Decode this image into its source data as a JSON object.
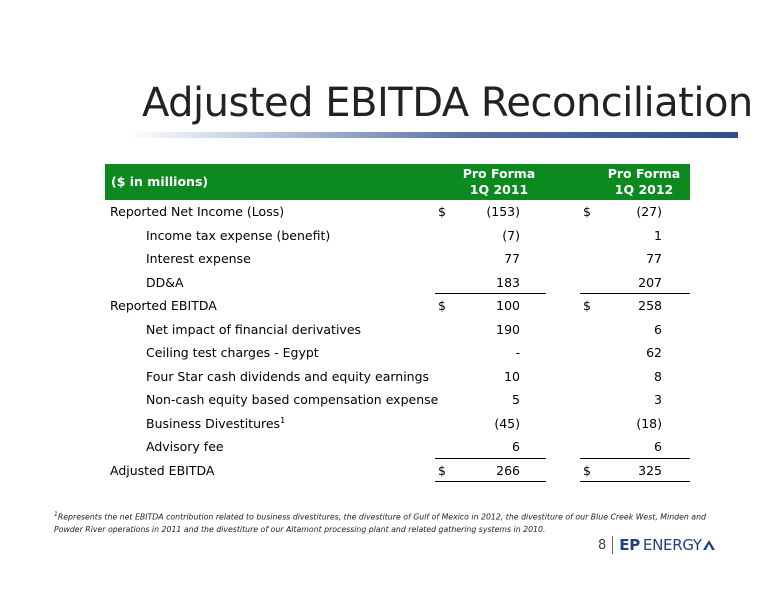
{
  "title": "Adjusted EBITDA Reconciliation",
  "table": {
    "header_label": "($ in millions)",
    "col1_line1": "Pro Forma",
    "col1_line2": "1Q 2011",
    "col2_line1": "Pro Forma",
    "col2_line2": "1Q 2012",
    "rows": [
      {
        "label": "Reported Net Income (Loss)",
        "cur1": "$",
        "v1": "(153)",
        "cur2": "$",
        "v2": "(27)"
      },
      {
        "label": "Income tax expense (benefit)",
        "v1": "(7)",
        "v2": "1"
      },
      {
        "label": "Interest expense",
        "v1": "77",
        "v2": "77"
      },
      {
        "label": "DD&A",
        "v1": "183",
        "v2": "207"
      },
      {
        "label": "Reported EBITDA",
        "cur1": "$",
        "v1": "100",
        "cur2": "$",
        "v2": "258"
      },
      {
        "label": "Net impact of financial derivatives",
        "v1": "190",
        "v2": "6"
      },
      {
        "label": "Ceiling test charges - Egypt",
        "v1": "-",
        "v2": "62"
      },
      {
        "label": "Four Star cash dividends and equity earnings",
        "v1": "10",
        "v2": "8"
      },
      {
        "label": "Non-cash equity based compensation expense",
        "v1": "5",
        "v2": "3"
      },
      {
        "label": "Business Divestitures",
        "label_sup": "1",
        "v1": "(45)",
        "v2": "(18)"
      },
      {
        "label": "Advisory fee",
        "v1": "6",
        "v2": "6"
      },
      {
        "label": "Adjusted EBITDA",
        "cur1": "$",
        "v1": "266",
        "cur2": "$",
        "v2": "325"
      }
    ]
  },
  "footnote": {
    "marker": "1",
    "text": "Represents the net EBITDA contribution related to business divestitures, the divestiture of Gulf of Mexico in 2012, the divestiture of our Blue Creek West, Minden and Powder River operations in 2011 and the divestiture of our Altamont processing plant and related gathering systems in 2010."
  },
  "footer": {
    "page_number": "8",
    "logo_ep": "EP",
    "logo_energy": "ENERGY",
    "logo_color": "#1f3f80"
  }
}
